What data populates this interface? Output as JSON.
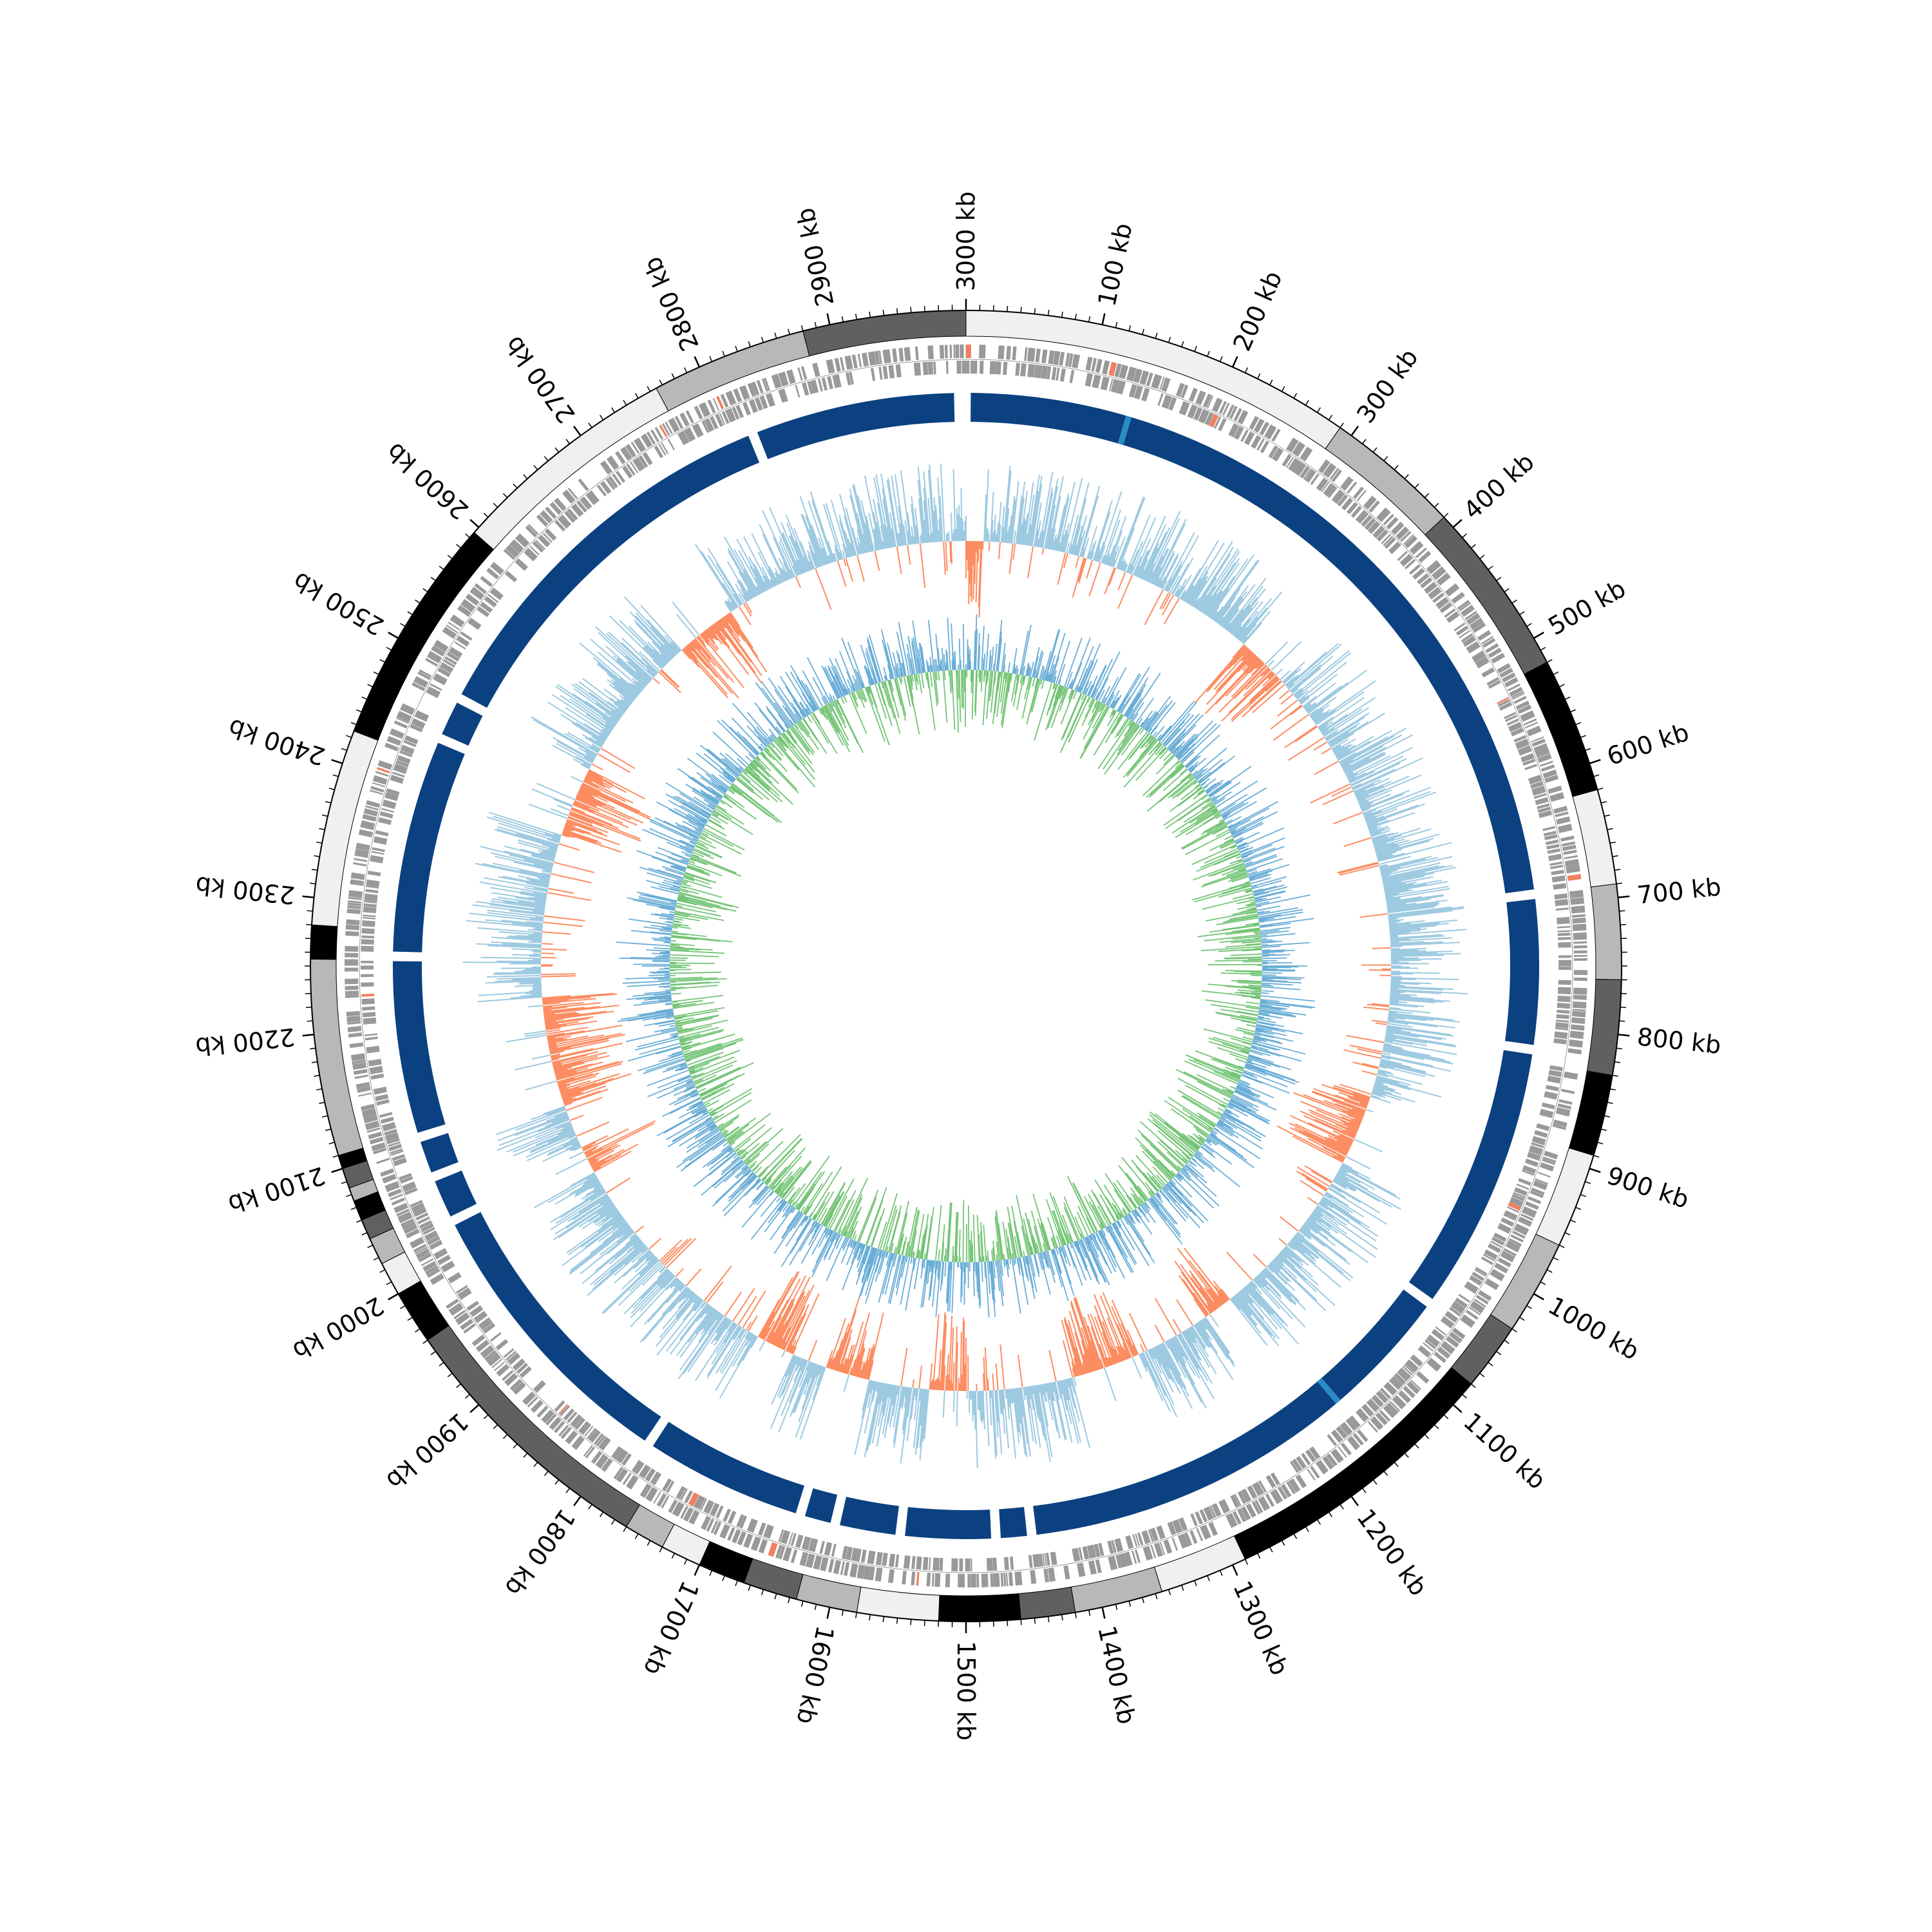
{
  "genome": {
    "length_kb": 3000,
    "unit": "kb",
    "tick_labels_kb": [
      3000,
      100,
      200,
      300,
      400,
      500,
      600,
      700,
      800,
      900,
      1000,
      1100,
      1200,
      1300,
      1400,
      1500,
      1600,
      1700,
      1800,
      1900,
      2000,
      2100,
      2200,
      2300,
      2400,
      2500,
      2600,
      2700,
      2800,
      2900
    ]
  },
  "colors": {
    "background": "#ffffff",
    "axis": "#000000",
    "feature_track": "#999999",
    "feature_highlight": "#f08060",
    "contig": "#0b4181",
    "contig_highlight": "#2b8cc4",
    "gc_content_positive": "#9ecae1",
    "gc_content_negative": "#fc8d62",
    "gc_skew_positive": "#6baed6",
    "gc_skew_negative": "#74c476"
  },
  "tracks": {
    "segments": [
      {
        "start": 0,
        "end": 290,
        "shade": "#f0f0f0"
      },
      {
        "start": 290,
        "end": 390,
        "shade": "#b8b8b8"
      },
      {
        "start": 390,
        "end": 520,
        "shade": "#606060"
      },
      {
        "start": 520,
        "end": 620,
        "shade": "#000000"
      },
      {
        "start": 620,
        "end": 690,
        "shade": "#f0f0f0"
      },
      {
        "start": 690,
        "end": 760,
        "shade": "#b8b8b8"
      },
      {
        "start": 760,
        "end": 830,
        "shade": "#606060"
      },
      {
        "start": 830,
        "end": 890,
        "shade": "#000000"
      },
      {
        "start": 890,
        "end": 960,
        "shade": "#f0f0f0"
      },
      {
        "start": 960,
        "end": 1030,
        "shade": "#b8b8b8"
      },
      {
        "start": 1030,
        "end": 1080,
        "shade": "#606060"
      },
      {
        "start": 1080,
        "end": 1290,
        "shade": "#000000"
      },
      {
        "start": 1290,
        "end": 1355,
        "shade": "#f0f0f0"
      },
      {
        "start": 1355,
        "end": 1420,
        "shade": "#b8b8b8"
      },
      {
        "start": 1420,
        "end": 1460,
        "shade": "#606060"
      },
      {
        "start": 1460,
        "end": 1520,
        "shade": "#000000"
      },
      {
        "start": 1520,
        "end": 1580,
        "shade": "#f0f0f0"
      },
      {
        "start": 1580,
        "end": 1625,
        "shade": "#b8b8b8"
      },
      {
        "start": 1625,
        "end": 1665,
        "shade": "#606060"
      },
      {
        "start": 1665,
        "end": 1700,
        "shade": "#000000"
      },
      {
        "start": 1700,
        "end": 1730,
        "shade": "#f0f0f0"
      },
      {
        "start": 1730,
        "end": 1760,
        "shade": "#b8b8b8"
      },
      {
        "start": 1760,
        "end": 1960,
        "shade": "#606060"
      },
      {
        "start": 1960,
        "end": 2000,
        "shade": "#000000"
      },
      {
        "start": 2000,
        "end": 2025,
        "shade": "#f0f0f0"
      },
      {
        "start": 2025,
        "end": 2045,
        "shade": "#b8b8b8"
      },
      {
        "start": 2045,
        "end": 2060,
        "shade": "#606060"
      },
      {
        "start": 2060,
        "end": 2075,
        "shade": "#000000"
      },
      {
        "start": 2075,
        "end": 2085,
        "shade": "#b8b8b8"
      },
      {
        "start": 2085,
        "end": 2100,
        "shade": "#606060"
      },
      {
        "start": 2100,
        "end": 2110,
        "shade": "#000000"
      },
      {
        "start": 2110,
        "end": 2255,
        "shade": "#b8b8b8"
      },
      {
        "start": 2255,
        "end": 2280,
        "shade": "#000000"
      },
      {
        "start": 2280,
        "end": 2425,
        "shade": "#f0f0f0"
      },
      {
        "start": 2425,
        "end": 2595,
        "shade": "#000000"
      },
      {
        "start": 2595,
        "end": 2765,
        "shade": "#f0f0f0"
      },
      {
        "start": 2765,
        "end": 2880,
        "shade": "#b8b8b8"
      },
      {
        "start": 2880,
        "end": 3000,
        "shade": "#606060"
      }
    ],
    "contigs": [
      {
        "start": 4,
        "end": 2810
      },
      {
        "start": 2818,
        "end": 2990
      }
    ],
    "contig_gaps_kb": [
      2818,
      2482,
      2445,
      2258,
      2105,
      2070,
      2030,
      1780,
      1640,
      1610,
      1555,
      1475,
      1445,
      1050,
      820,
      690
    ]
  }
}
